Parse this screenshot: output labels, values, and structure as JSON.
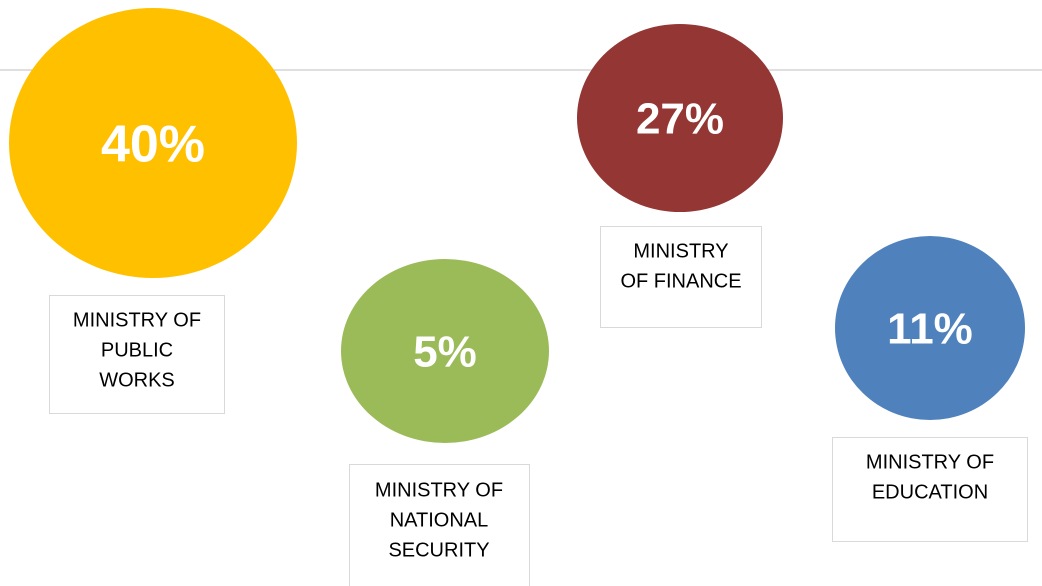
{
  "items": [
    {
      "percent": "40%",
      "label_lines": [
        "MINISTRY OF",
        "PUBLIC",
        "WORKS"
      ]
    },
    {
      "percent": "5%",
      "label_lines": [
        "MINISTRY OF",
        "NATIONAL",
        "SECURITY"
      ]
    },
    {
      "percent": "27%",
      "label_lines": [
        "MINISTRY",
        "OF FINANCE"
      ]
    },
    {
      "percent": "11%",
      "label_lines": [
        "MINISTRY OF",
        "EDUCATION"
      ]
    }
  ]
}
